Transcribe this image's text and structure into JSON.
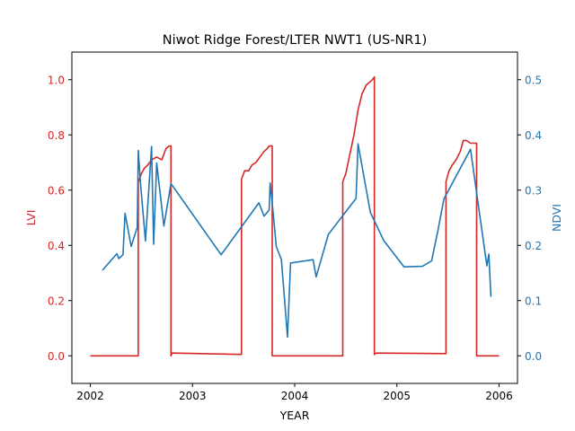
{
  "chart_data": {
    "type": "line",
    "title": "Niwot Ridge Forest/LTER NWT1 (US-NR1)",
    "xlabel": "YEAR",
    "ylabel_left": "LVI",
    "ylabel_right": "NDVI",
    "xlim": [
      2001.82,
      2006.18
    ],
    "ylim_left": [
      -0.1,
      1.1
    ],
    "ylim_right": [
      -0.05,
      0.55
    ],
    "xticks": [
      2002,
      2003,
      2004,
      2005,
      2006
    ],
    "yticks_left": [
      0.0,
      0.2,
      0.4,
      0.6,
      0.8,
      1.0
    ],
    "yticks_right": [
      0.0,
      0.1,
      0.2,
      0.3,
      0.4,
      0.5
    ],
    "grid": false,
    "colors": {
      "lvi": "#d62728",
      "ndvi": "#1f77b4",
      "axis": "#000000"
    },
    "series": [
      {
        "name": "LVI",
        "axis": "left",
        "x": [
          2002.0,
          2002.47,
          2002.47,
          2002.48,
          2002.5,
          2002.53,
          2002.56,
          2002.6,
          2002.65,
          2002.7,
          2002.74,
          2002.77,
          2002.79,
          2002.79,
          2002.8,
          2003.48,
          2003.48,
          2003.51,
          2003.55,
          2003.58,
          2003.62,
          2003.66,
          2003.7,
          2003.73,
          2003.75,
          2003.78,
          2003.78,
          2004.47,
          2004.47,
          2004.5,
          2004.54,
          2004.58,
          2004.62,
          2004.66,
          2004.7,
          2004.73,
          2004.76,
          2004.78,
          2004.78,
          2004.8,
          2005.48,
          2005.48,
          2005.51,
          2005.54,
          2005.58,
          2005.62,
          2005.65,
          2005.68,
          2005.72,
          2005.76,
          2005.78,
          2005.78,
          2006.0
        ],
        "y": [
          0.0,
          0.0,
          0.63,
          0.64,
          0.66,
          0.68,
          0.69,
          0.71,
          0.72,
          0.71,
          0.75,
          0.76,
          0.76,
          0.0,
          0.01,
          0.005,
          0.64,
          0.67,
          0.67,
          0.69,
          0.7,
          0.72,
          0.74,
          0.75,
          0.76,
          0.76,
          0.0,
          0.0,
          0.63,
          0.66,
          0.73,
          0.8,
          0.89,
          0.95,
          0.98,
          0.99,
          1.0,
          1.01,
          0.005,
          0.01,
          0.008,
          0.63,
          0.67,
          0.69,
          0.71,
          0.74,
          0.78,
          0.78,
          0.77,
          0.77,
          0.77,
          0.0,
          0.0
        ]
      },
      {
        "name": "NDVI",
        "axis": "right",
        "x": [
          2002.12,
          2002.26,
          2002.28,
          2002.32,
          2002.34,
          2002.4,
          2002.46,
          2002.47,
          2002.49,
          2002.54,
          2002.6,
          2002.62,
          2002.65,
          2002.72,
          2002.79,
          2003.28,
          2003.65,
          2003.7,
          2003.75,
          2003.76,
          2003.79,
          2003.82,
          2003.87,
          2003.93,
          2003.96,
          2004.18,
          2004.21,
          2004.33,
          2004.6,
          2004.62,
          2004.74,
          2004.87,
          2005.07,
          2005.25,
          2005.34,
          2005.4,
          2005.46,
          2005.72,
          2005.88,
          2005.9,
          2005.92
        ],
        "y": [
          0.155,
          0.185,
          0.176,
          0.183,
          0.258,
          0.198,
          0.233,
          0.372,
          0.316,
          0.208,
          0.379,
          0.202,
          0.349,
          0.235,
          0.312,
          0.183,
          0.277,
          0.253,
          0.264,
          0.313,
          0.258,
          0.198,
          0.174,
          0.034,
          0.168,
          0.174,
          0.143,
          0.22,
          0.285,
          0.384,
          0.26,
          0.209,
          0.161,
          0.162,
          0.172,
          0.226,
          0.284,
          0.374,
          0.163,
          0.184,
          0.107
        ]
      }
    ]
  }
}
